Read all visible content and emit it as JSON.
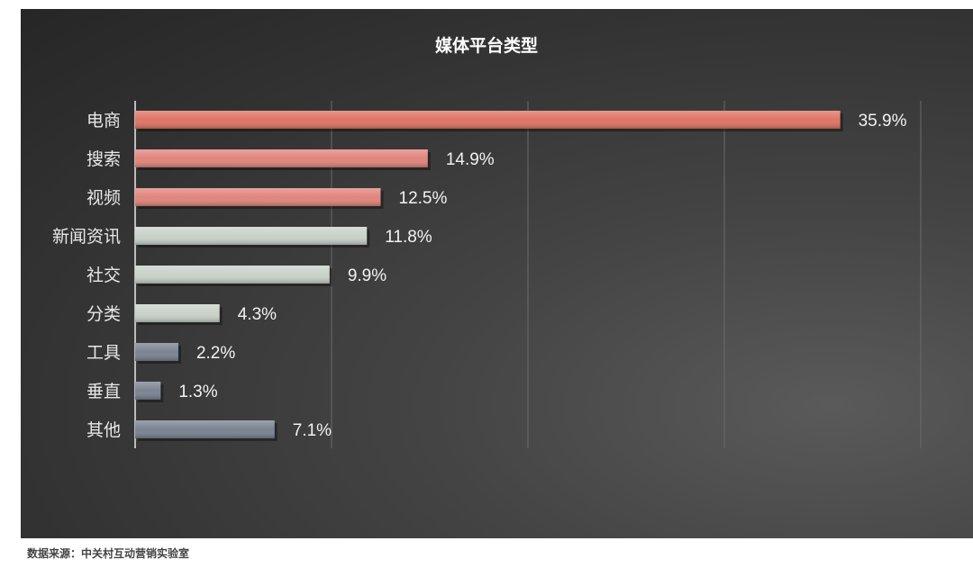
{
  "chart_data": {
    "type": "bar",
    "orientation": "horizontal",
    "title": "媒体平台类型",
    "categories": [
      "电商",
      "搜索",
      "视频",
      "新闻资讯",
      "社交",
      "分类",
      "工具",
      "垂直",
      "其他"
    ],
    "values": [
      35.9,
      14.9,
      12.5,
      11.8,
      9.9,
      4.3,
      2.2,
      1.3,
      7.1
    ],
    "data_labels": [
      "35.9%",
      "14.9%",
      "12.5%",
      "11.8%",
      "9.9%",
      "4.3%",
      "2.2%",
      "1.3%",
      "7.1%"
    ],
    "bar_colors": [
      "#df7465",
      "#e0857c",
      "#e0857c",
      "#c9d1c9",
      "#c9d1c9",
      "#c9d1c9",
      "#7b8391",
      "#7b8391",
      "#7b8391"
    ],
    "xlim": [
      0,
      40
    ],
    "grid": true,
    "xlabel": "",
    "ylabel": "",
    "legend": "none"
  },
  "source": "数据来源：中关村互动营销实验室"
}
